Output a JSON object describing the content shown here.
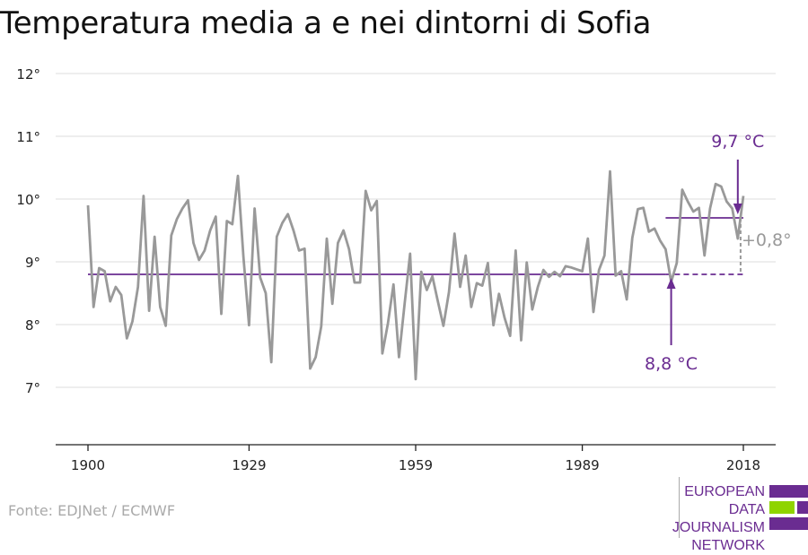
{
  "title": "Temperatura media a e nei dintorni di Sofia",
  "source": "Fonte: EDJNet / ECMWF",
  "logo": {
    "lines": [
      "EUROPEAN",
      "DATA JOURNALISM",
      "NETWORK"
    ],
    "colors": {
      "purple": "#6a2c91",
      "green": "#8fd400"
    }
  },
  "chart_data": {
    "type": "line",
    "title": "Temperatura media a e nei dintorni di Sofia",
    "xlabel": "",
    "ylabel": "",
    "xlim": [
      1900,
      2018
    ],
    "ylim": [
      6.0,
      12.0
    ],
    "x_ticks": [
      {
        "value": 1900,
        "label": "1900"
      },
      {
        "value": 1929,
        "label": "1929"
      },
      {
        "value": 1959,
        "label": "1959"
      },
      {
        "value": 1989,
        "label": "1989"
      },
      {
        "value": 2018,
        "label": "2018"
      }
    ],
    "y_ticks": [
      {
        "value": 7,
        "label": "7°"
      },
      {
        "value": 8,
        "label": "8°"
      },
      {
        "value": 9,
        "label": "9°"
      },
      {
        "value": 10,
        "label": "10°"
      },
      {
        "value": 11,
        "label": "11°"
      },
      {
        "value": 12,
        "label": "12°"
      }
    ],
    "grid": true,
    "series": [
      {
        "color": "#999999",
        "x": [
          1900,
          1901,
          1902,
          1903,
          1904,
          1905,
          1906,
          1907,
          1908,
          1909,
          1910,
          1911,
          1912,
          1913,
          1914,
          1915,
          1916,
          1917,
          1918,
          1919,
          1920,
          1921,
          1922,
          1923,
          1924,
          1925,
          1926,
          1927,
          1928,
          1929,
          1930,
          1931,
          1932,
          1933,
          1934,
          1935,
          1936,
          1937,
          1938,
          1939,
          1940,
          1941,
          1942,
          1943,
          1944,
          1945,
          1946,
          1947,
          1948,
          1949,
          1950,
          1951,
          1952,
          1953,
          1954,
          1955,
          1956,
          1957,
          1958,
          1959,
          1960,
          1961,
          1962,
          1963,
          1964,
          1965,
          1966,
          1967,
          1968,
          1969,
          1970,
          1971,
          1972,
          1973,
          1974,
          1975,
          1976,
          1977,
          1978,
          1979,
          1980,
          1981,
          1982,
          1983,
          1984,
          1985,
          1986,
          1987,
          1988,
          1989,
          1990,
          1991,
          1992,
          1993,
          1994,
          1995,
          1996,
          1997,
          1998,
          1999,
          2000,
          2001,
          2002,
          2003,
          2004,
          2005,
          2006,
          2007,
          2008,
          2009,
          2010,
          2011,
          2012,
          2013,
          2014,
          2015,
          2016,
          2017,
          2018
        ],
        "y": [
          9.9,
          8.28,
          8.9,
          8.85,
          8.37,
          8.6,
          8.47,
          7.78,
          8.05,
          8.6,
          10.05,
          8.22,
          9.4,
          8.28,
          7.98,
          9.42,
          9.68,
          9.85,
          9.98,
          9.3,
          9.03,
          9.18,
          9.5,
          9.72,
          8.17,
          9.65,
          9.6,
          10.37,
          9.07,
          7.99,
          9.85,
          8.75,
          8.5,
          7.4,
          9.4,
          9.62,
          9.76,
          9.5,
          9.18,
          9.21,
          7.3,
          7.48,
          7.97,
          9.37,
          8.33,
          9.3,
          9.5,
          9.2,
          8.67,
          8.67,
          10.13,
          9.82,
          9.97,
          7.54,
          8.02,
          8.64,
          7.48,
          8.32,
          9.13,
          7.13,
          8.84,
          8.55,
          8.77,
          8.37,
          7.98,
          8.52,
          9.45,
          8.6,
          9.1,
          8.28,
          8.66,
          8.62,
          8.98,
          7.99,
          8.49,
          8.11,
          7.82,
          9.18,
          7.75,
          8.99,
          8.24,
          8.6,
          8.87,
          8.76,
          8.84,
          8.77,
          8.93,
          8.91,
          8.88,
          8.85,
          9.37,
          8.2,
          8.87,
          9.1,
          10.44,
          8.78,
          8.85,
          8.4,
          9.38,
          9.84,
          9.86,
          9.48,
          9.53,
          9.34,
          9.2,
          8.68,
          8.98,
          10.15,
          9.96,
          9.8,
          9.86,
          9.1,
          9.85,
          10.24,
          10.2,
          9.96,
          9.85,
          9.37,
          10.05
        ]
      }
    ],
    "annotations": {
      "baseline": {
        "value": 8.8,
        "x_range": [
          1900,
          2018
        ],
        "solid_until": 2004,
        "label": "8,8 °C",
        "label_x": 2005,
        "color": "#6a2c91"
      },
      "recent": {
        "value": 9.7,
        "x_range": [
          2004,
          2018
        ],
        "label": "9,7 °C",
        "label_x": 2017,
        "color": "#6a2c91"
      },
      "difference": {
        "label": "+0,8°",
        "x": 2017.5,
        "color": "#999999"
      }
    }
  }
}
